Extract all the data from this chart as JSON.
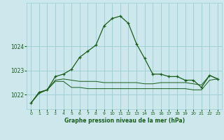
{
  "title": "Graphe pression niveau de la mer (hPa)",
  "background_color": "#cce8ec",
  "grid_color": "#99ccd4",
  "line_color": "#1a5c1a",
  "xlim": [
    -0.5,
    23.5
  ],
  "ylim": [
    1021.4,
    1025.8
  ],
  "yticks": [
    1022,
    1023,
    1024
  ],
  "xticks": [
    0,
    1,
    2,
    3,
    4,
    5,
    6,
    7,
    8,
    9,
    10,
    11,
    12,
    13,
    14,
    15,
    16,
    17,
    18,
    19,
    20,
    21,
    22,
    23
  ],
  "hours": [
    0,
    1,
    2,
    3,
    4,
    5,
    6,
    7,
    8,
    9,
    10,
    11,
    12,
    13,
    14,
    15,
    16,
    17,
    18,
    19,
    20,
    21,
    22,
    23
  ],
  "series1": [
    1021.65,
    1022.1,
    1022.2,
    1022.75,
    1022.85,
    1023.05,
    1023.55,
    1023.8,
    1024.05,
    1024.85,
    1025.15,
    1025.25,
    1024.95,
    1024.1,
    1023.5,
    1022.85,
    1022.85,
    1022.75,
    1022.75,
    1022.6,
    1022.6,
    1022.3,
    1022.8,
    1022.65
  ],
  "series2": [
    1021.65,
    1022.1,
    1022.2,
    1022.6,
    1022.65,
    1022.6,
    1022.55,
    1022.55,
    1022.55,
    1022.5,
    1022.5,
    1022.5,
    1022.5,
    1022.5,
    1022.45,
    1022.45,
    1022.5,
    1022.5,
    1022.5,
    1022.5,
    1022.45,
    1022.4,
    1022.8,
    1022.65
  ],
  "series3": [
    1021.65,
    1022.05,
    1022.2,
    1022.55,
    1022.55,
    1022.3,
    1022.3,
    1022.25,
    1022.25,
    1022.25,
    1022.25,
    1022.25,
    1022.25,
    1022.25,
    1022.25,
    1022.25,
    1022.25,
    1022.25,
    1022.25,
    1022.25,
    1022.2,
    1022.2,
    1022.6,
    1022.65
  ]
}
